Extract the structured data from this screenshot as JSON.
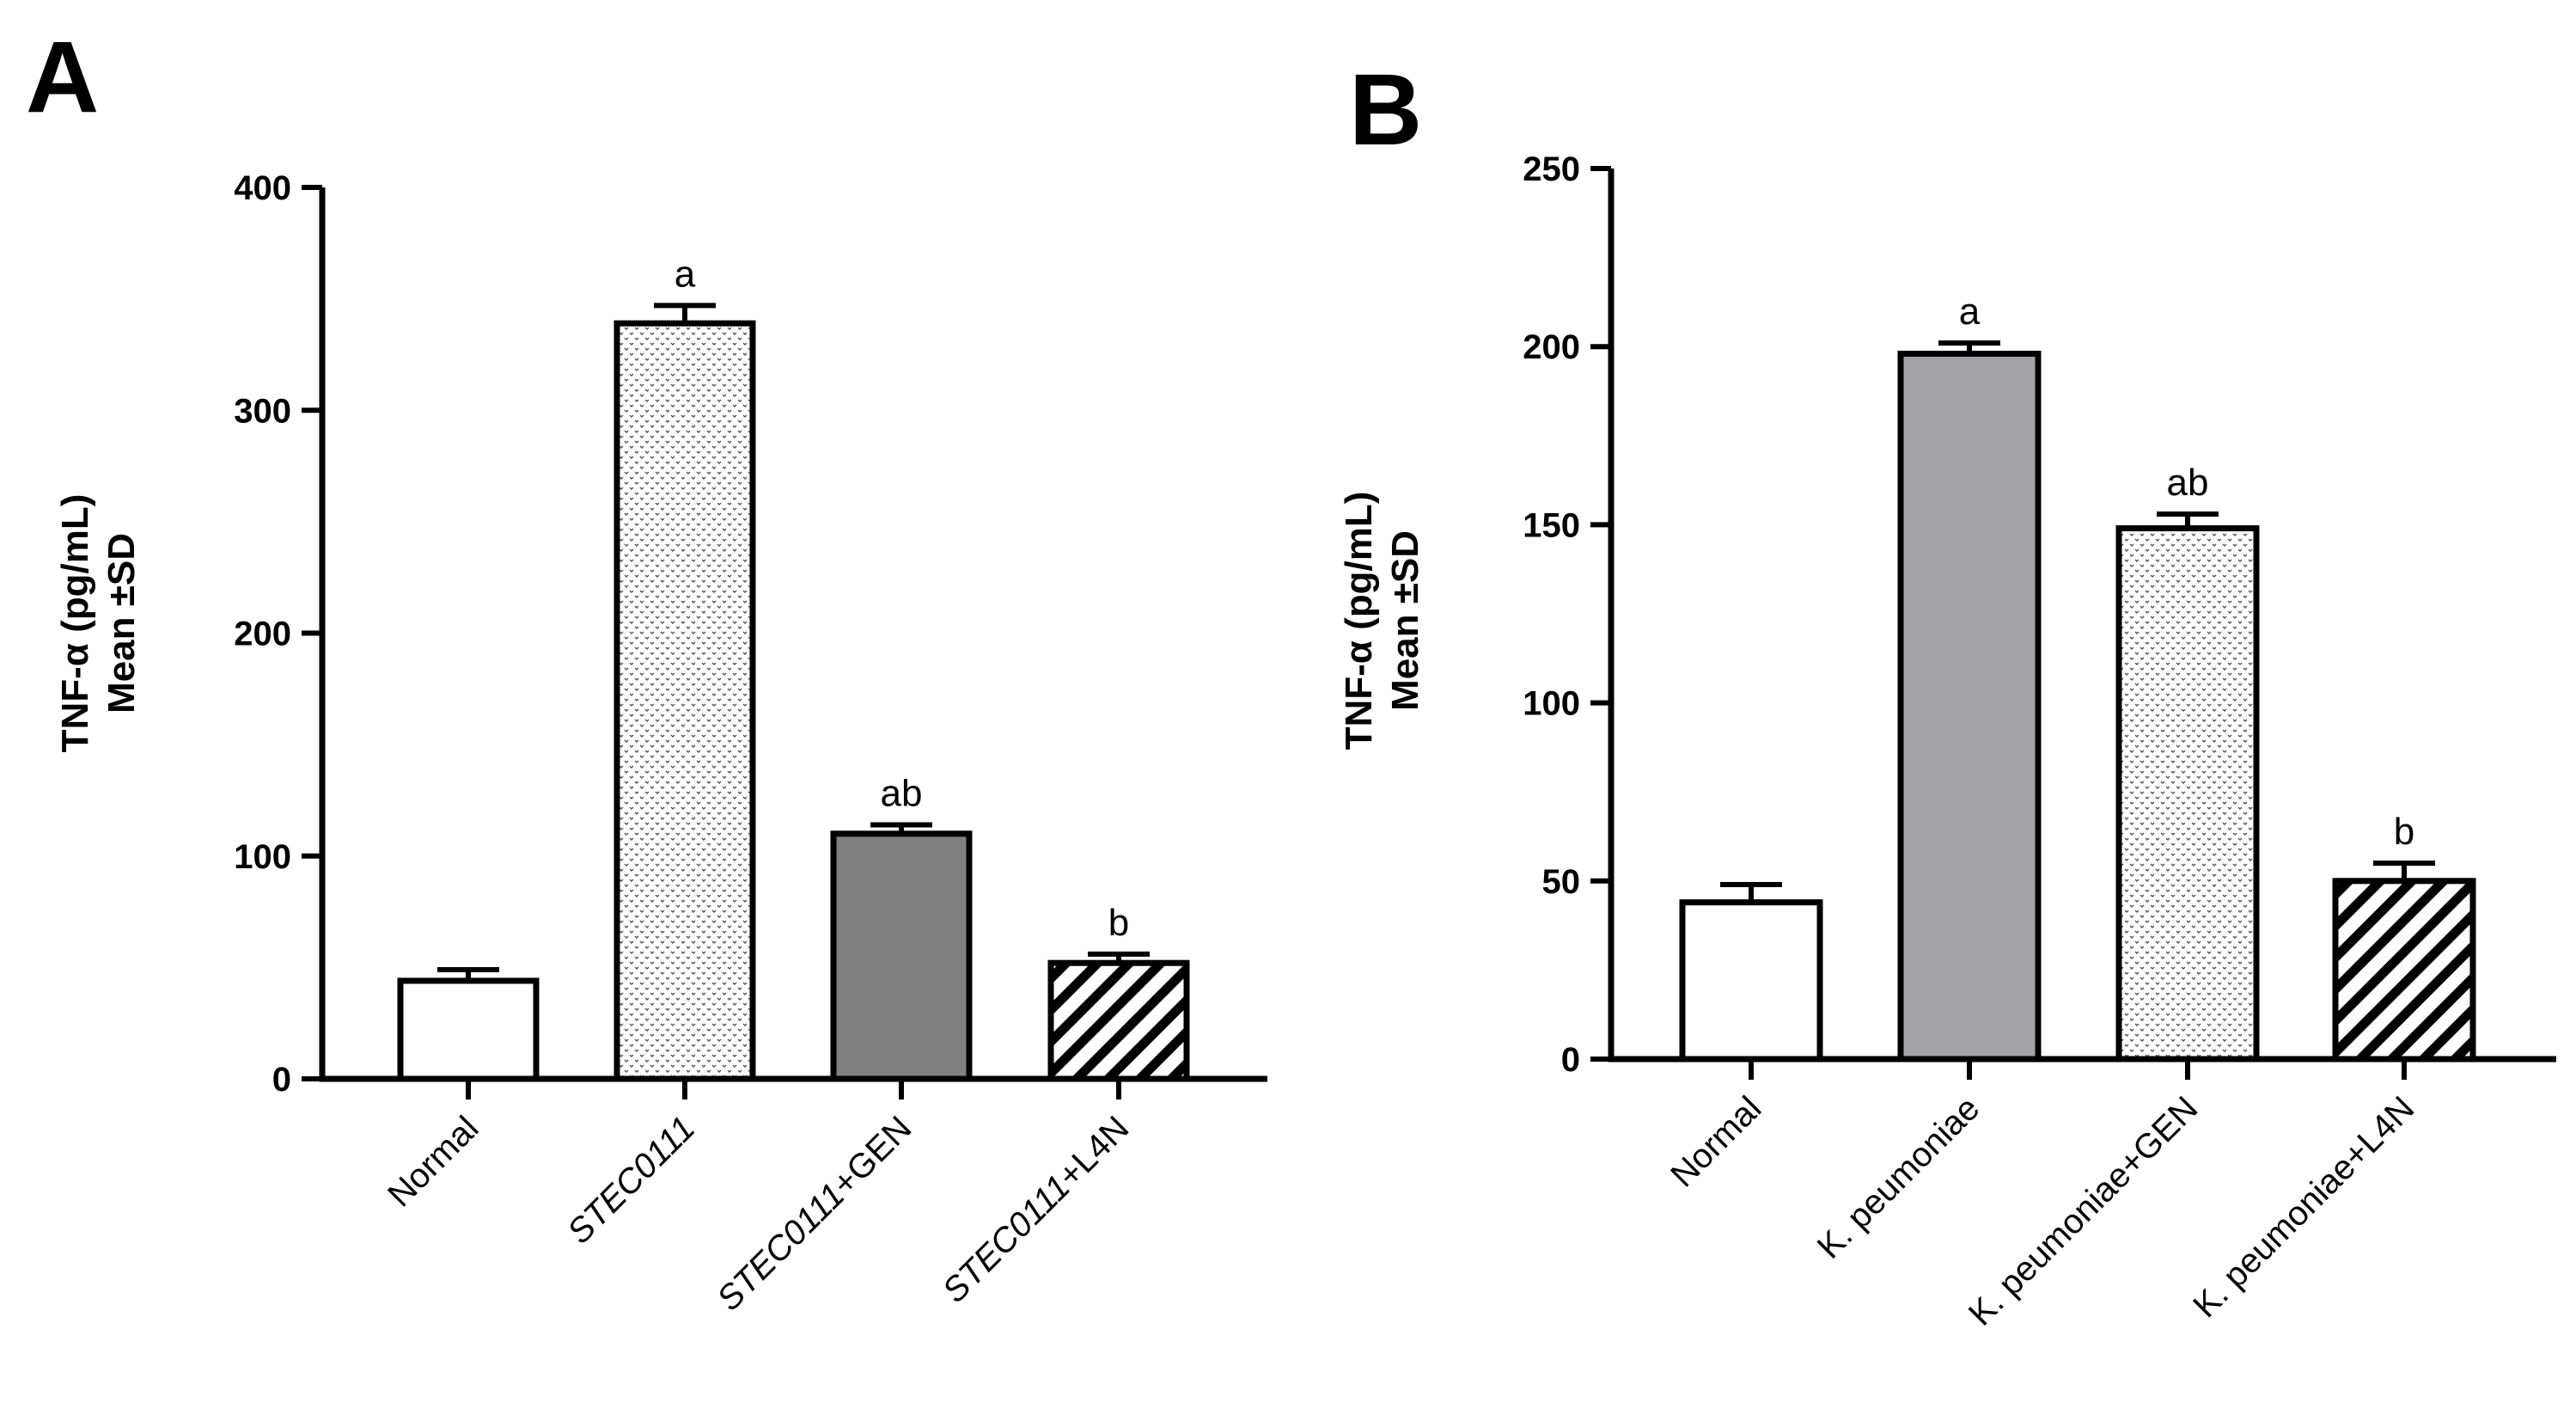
{
  "chart_data": [
    {
      "type": "bar",
      "panel": "A",
      "title": "",
      "xlabel": "",
      "ylabel": "TNF-α (pg/mL)",
      "ylabel_line2": "Mean ±SD",
      "ylim": [
        0,
        400
      ],
      "yticks": [
        0,
        100,
        200,
        300,
        400
      ],
      "categories": [
        {
          "parts": [
            {
              "text": "Normal",
              "italic": false
            }
          ]
        },
        {
          "parts": [
            {
              "text": "STEC0111",
              "italic": true
            }
          ]
        },
        {
          "parts": [
            {
              "text": "STEC0111",
              "italic": true
            },
            {
              "text": "+GEN",
              "italic": false
            }
          ]
        },
        {
          "parts": [
            {
              "text": "STEC0111",
              "italic": true
            },
            {
              "text": "+L4N",
              "italic": false
            }
          ]
        }
      ],
      "values": [
        44,
        339,
        110,
        52
      ],
      "errors": [
        5,
        8,
        4,
        4
      ],
      "significance": [
        "",
        "a",
        "ab",
        "b"
      ],
      "fills": [
        "white",
        "dots",
        "gray",
        "hatch"
      ],
      "colors": {
        "bar_stroke": "#000000",
        "gray_fill": "#808080",
        "dots_bg": "#ffffff"
      }
    },
    {
      "type": "bar",
      "panel": "B",
      "title": "",
      "xlabel": "",
      "ylabel": "TNF-α (pg/mL)",
      "ylabel_line2": "Mean ±SD",
      "ylim": [
        0,
        250
      ],
      "yticks": [
        0,
        50,
        100,
        150,
        200,
        250
      ],
      "categories": [
        {
          "parts": [
            {
              "text": "Normal",
              "italic": false
            }
          ]
        },
        {
          "parts": [
            {
              "text": "K. peumoniae",
              "italic": false
            }
          ]
        },
        {
          "parts": [
            {
              "text": "K. peumoniae+GEN",
              "italic": false
            }
          ]
        },
        {
          "parts": [
            {
              "text": "K. peumoniae+L4N",
              "italic": false
            }
          ]
        }
      ],
      "values": [
        44,
        198,
        149,
        50
      ],
      "errors": [
        5,
        3,
        4,
        5
      ],
      "significance": [
        "",
        "a",
        "ab",
        "b"
      ],
      "fills": [
        "white",
        "gray",
        "dots",
        "hatch"
      ],
      "colors": {
        "bar_stroke": "#000000",
        "gray_fill": "#a4a4a8",
        "dots_bg": "#ffffff"
      }
    }
  ]
}
